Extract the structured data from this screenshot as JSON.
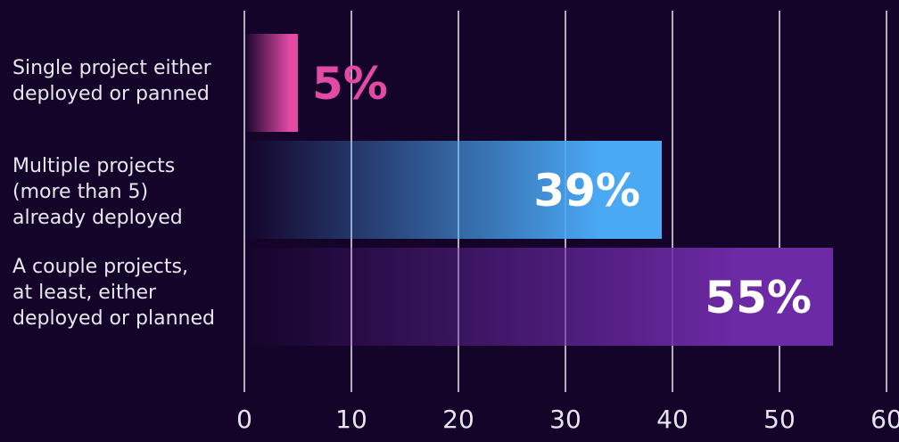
{
  "chart_data": {
    "type": "bar",
    "orientation": "horizontal",
    "title": "",
    "xlabel": "",
    "ylabel": "",
    "categories": [
      "Single project either\ndeployed or panned",
      "Multiple projects\n(more than 5)\nalready deployed",
      "A couple projects,\nat least, either\ndeployed or planned"
    ],
    "values": [
      5,
      39,
      55
    ],
    "value_labels": [
      "5%",
      "39%",
      "55%"
    ],
    "bar_colors": [
      "#e34aa6",
      "#4aa8f4",
      "#6d2aa6"
    ],
    "label_colors": [
      "#e34aa6",
      "#ffffff",
      "#ffffff"
    ],
    "xlim": [
      0,
      60
    ],
    "xticks": [
      0,
      10,
      20,
      30,
      40,
      50,
      60
    ],
    "xtick_labels": [
      "0",
      "10",
      "20",
      "30",
      "40",
      "50",
      "60"
    ],
    "grid": "vertical",
    "background": "#14042a"
  }
}
